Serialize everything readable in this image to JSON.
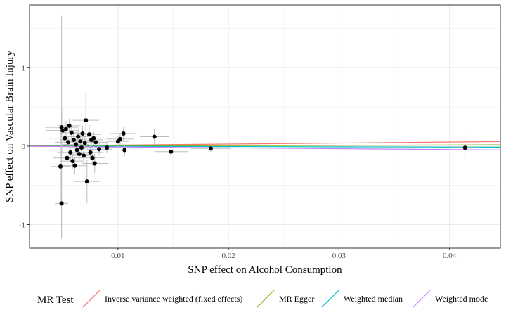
{
  "chart_data": {
    "type": "scatter",
    "xlabel": "SNP effect on Alcohol Consumption",
    "ylabel": "SNP effect on Vascular Brain Injury",
    "xlim": [
      0.002,
      0.0446
    ],
    "ylim": [
      -1.3,
      1.8
    ],
    "x_ticks": [
      0.01,
      0.02,
      0.03,
      0.04
    ],
    "x_tick_labels": [
      "0.01",
      "0.02",
      "0.03",
      "0.04"
    ],
    "y_ticks": [
      -1,
      0,
      1
    ],
    "y_tick_labels": [
      "-1",
      "0",
      "1"
    ],
    "grid": true,
    "legend": {
      "title": "MR Test",
      "position": "bottom",
      "entries": [
        {
          "label": "Inverse variance weighted (fixed effects)",
          "color": "#F8766D",
          "slope": 1.3
        },
        {
          "label": "MR Egger",
          "color": "#7CAE00",
          "slope": 0.35
        },
        {
          "label": "Weighted median",
          "color": "#00BFC4",
          "slope": -0.3
        },
        {
          "label": "Weighted mode",
          "color": "#C77CFF",
          "slope": -1.1
        }
      ]
    },
    "points": [
      {
        "x": 0.0049,
        "y": -0.73,
        "xerr": 0.0006,
        "yerr": 0.42
      },
      {
        "x": 0.0049,
        "y": 0.24,
        "xerr": 0.0015,
        "yerr": 1.42
      },
      {
        "x": 0.0048,
        "y": -0.26,
        "xerr": 0.0009,
        "yerr": 0.45
      },
      {
        "x": 0.005,
        "y": 0.2,
        "xerr": 0.0015,
        "yerr": 0.3
      },
      {
        "x": 0.0052,
        "y": 0.1,
        "xerr": 0.0016,
        "yerr": 0.12
      },
      {
        "x": 0.0053,
        "y": 0.22,
        "xerr": 0.0014,
        "yerr": 0.1
      },
      {
        "x": 0.0054,
        "y": -0.15,
        "xerr": 0.0013,
        "yerr": 0.12
      },
      {
        "x": 0.0055,
        "y": 0.05,
        "xerr": 0.0012,
        "yerr": 0.08
      },
      {
        "x": 0.0056,
        "y": 0.26,
        "xerr": 0.001,
        "yerr": 0.09
      },
      {
        "x": 0.0057,
        "y": -0.08,
        "xerr": 0.0012,
        "yerr": 0.1
      },
      {
        "x": 0.0058,
        "y": 0.17,
        "xerr": 0.0011,
        "yerr": 0.09
      },
      {
        "x": 0.0059,
        "y": -0.19,
        "xerr": 0.001,
        "yerr": 0.1
      },
      {
        "x": 0.006,
        "y": 0.08,
        "xerr": 0.0012,
        "yerr": 0.08
      },
      {
        "x": 0.0061,
        "y": -0.25,
        "xerr": 0.0011,
        "yerr": 0.11
      },
      {
        "x": 0.0062,
        "y": 0.02,
        "xerr": 0.0012,
        "yerr": 0.07
      },
      {
        "x": 0.0063,
        "y": -0.05,
        "xerr": 0.001,
        "yerr": 0.08
      },
      {
        "x": 0.0064,
        "y": 0.12,
        "xerr": 0.0011,
        "yerr": 0.09
      },
      {
        "x": 0.0065,
        "y": -0.1,
        "xerr": 0.001,
        "yerr": 0.08
      },
      {
        "x": 0.0066,
        "y": 0.06,
        "xerr": 0.0011,
        "yerr": 0.08
      },
      {
        "x": 0.0067,
        "y": -0.02,
        "xerr": 0.001,
        "yerr": 0.07
      },
      {
        "x": 0.0068,
        "y": 0.16,
        "xerr": 0.0011,
        "yerr": 0.1
      },
      {
        "x": 0.0069,
        "y": -0.12,
        "xerr": 0.001,
        "yerr": 0.09
      },
      {
        "x": 0.007,
        "y": 0.04,
        "xerr": 0.0012,
        "yerr": 0.08
      },
      {
        "x": 0.0071,
        "y": 0.33,
        "xerr": 0.0012,
        "yerr": 0.35
      },
      {
        "x": 0.0072,
        "y": -0.45,
        "xerr": 0.0012,
        "yerr": 0.28
      },
      {
        "x": 0.0074,
        "y": 0.15,
        "xerr": 0.0011,
        "yerr": 0.12
      },
      {
        "x": 0.0075,
        "y": -0.08,
        "xerr": 0.0012,
        "yerr": 0.09
      },
      {
        "x": 0.0076,
        "y": 0.08,
        "xerr": 0.001,
        "yerr": 0.08
      },
      {
        "x": 0.0077,
        "y": -0.15,
        "xerr": 0.0011,
        "yerr": 0.1
      },
      {
        "x": 0.0078,
        "y": 0.1,
        "xerr": 0.0012,
        "yerr": 0.08
      },
      {
        "x": 0.0079,
        "y": -0.22,
        "xerr": 0.0012,
        "yerr": 0.12
      },
      {
        "x": 0.008,
        "y": 0.05,
        "xerr": 0.001,
        "yerr": 0.08
      },
      {
        "x": 0.0083,
        "y": -0.04,
        "xerr": 0.0012,
        "yerr": 0.08
      },
      {
        "x": 0.009,
        "y": -0.02,
        "xerr": 0.0011,
        "yerr": 0.07
      },
      {
        "x": 0.01,
        "y": 0.06,
        "xerr": 0.001,
        "yerr": 0.07
      },
      {
        "x": 0.0102,
        "y": 0.09,
        "xerr": 0.0012,
        "yerr": 0.08
      },
      {
        "x": 0.0105,
        "y": 0.16,
        "xerr": 0.0012,
        "yerr": 0.09
      },
      {
        "x": 0.0106,
        "y": -0.05,
        "xerr": 0.0012,
        "yerr": 0.08
      },
      {
        "x": 0.0133,
        "y": 0.12,
        "xerr": 0.0013,
        "yerr": 0.1
      },
      {
        "x": 0.0148,
        "y": -0.07,
        "xerr": 0.0015,
        "yerr": 0.07
      },
      {
        "x": 0.0184,
        "y": -0.03,
        "xerr": 0.0018,
        "yerr": 0.04
      },
      {
        "x": 0.0414,
        "y": -0.02,
        "xerr": 0.0012,
        "yerr": 0.16
      }
    ]
  }
}
